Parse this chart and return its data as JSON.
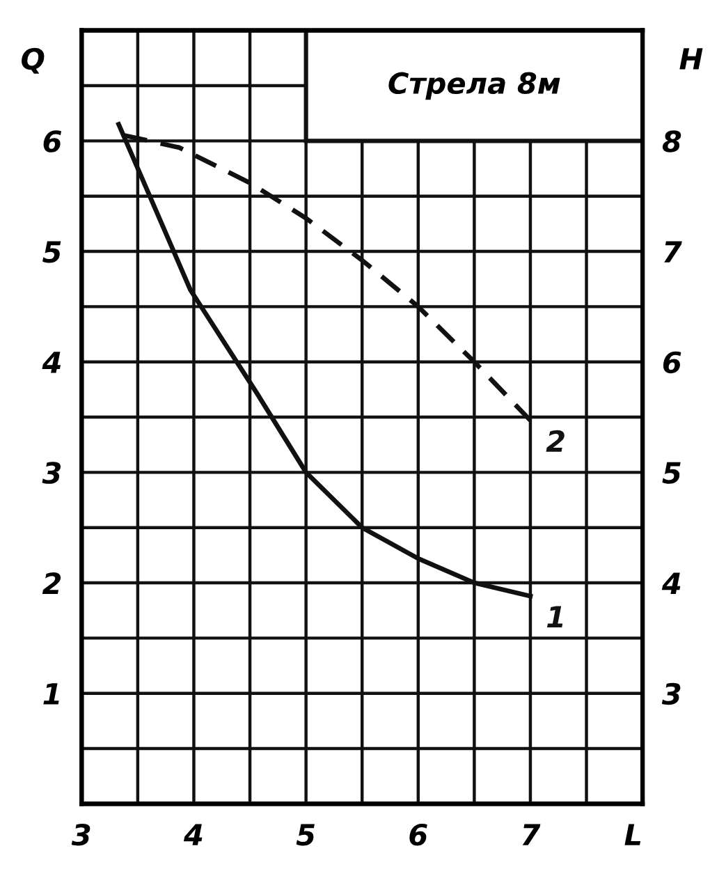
{
  "chart_data": {
    "type": "line",
    "annotations": [
      "Стрела 8м"
    ],
    "xlabel": "L",
    "ylabel": "Q",
    "y2label": "H",
    "xlim": [
      3,
      8
    ],
    "xticks": [
      3,
      {
        "value": 3.5,
        "label": null
      },
      4,
      {
        "value": 4.5,
        "label": null
      },
      5,
      {
        "value": 5.5,
        "label": null
      },
      6,
      {
        "value": 6.5,
        "label": null
      },
      7,
      {
        "value": 7.5,
        "label": null
      }
    ],
    "ylim": [
      0,
      7
    ],
    "yticks": [
      {
        "value": 0.5,
        "label": null
      },
      1,
      {
        "value": 1.5,
        "label": null
      },
      2,
      {
        "value": 2.5,
        "label": null
      },
      3,
      {
        "value": 3.5,
        "label": null
      },
      4,
      {
        "value": 4.5,
        "label": null
      },
      5,
      {
        "value": 5.5,
        "label": null
      },
      6,
      {
        "value": 6.5,
        "label": null
      }
    ],
    "y2lim": [
      2,
      9
    ],
    "y2ticks": [
      3,
      4,
      5,
      6,
      7,
      8
    ],
    "grid": true,
    "series": [
      {
        "name": "1",
        "color": "#111111",
        "line_style": "solid",
        "x": [
          3.33,
          3.97,
          4.56,
          5.0,
          5.5,
          6.0,
          6.5,
          7.0
        ],
        "values": [
          6.15,
          4.65,
          3.72,
          3.0,
          2.5,
          2.22,
          2.0,
          1.88
        ]
      },
      {
        "name": "2",
        "color": "#111111",
        "line_style": "dashed",
        "axis": "y2",
        "x": [
          3.38,
          3.87,
          4.5,
          5.0,
          5.5,
          6.0,
          6.5,
          7.0
        ],
        "values": [
          8.05,
          7.94,
          7.62,
          7.3,
          6.92,
          6.5,
          6.0,
          5.47
        ]
      }
    ]
  }
}
